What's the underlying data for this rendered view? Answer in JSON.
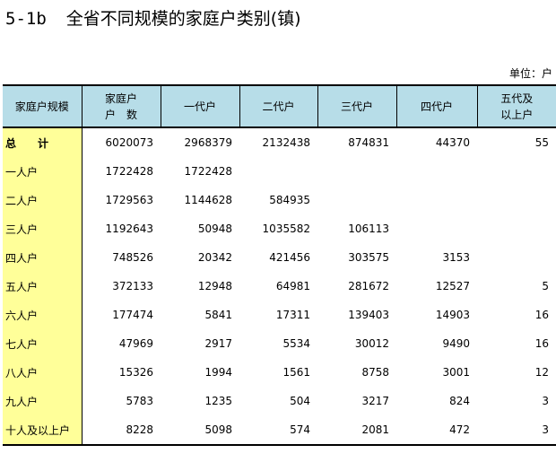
{
  "title": {
    "number": "5-1b",
    "text": "全省不同规模的家庭户类别(镇)"
  },
  "unit": "单位：户",
  "columns": [
    [
      "家庭户规模"
    ],
    [
      "家庭户",
      "户　数"
    ],
    [
      "一代户"
    ],
    [
      "二代户"
    ],
    [
      "三代户"
    ],
    [
      "四代户"
    ],
    [
      "五代及",
      "以上户"
    ]
  ],
  "rows": [
    {
      "label": "总　计",
      "values": [
        "6020073",
        "2968379",
        "2132438",
        "874831",
        "44370",
        "55"
      ]
    },
    {
      "label": "一人户",
      "values": [
        "1722428",
        "1722428",
        "",
        "",
        "",
        ""
      ]
    },
    {
      "label": "二人户",
      "values": [
        "1729563",
        "1144628",
        "584935",
        "",
        "",
        ""
      ]
    },
    {
      "label": "三人户",
      "values": [
        "1192643",
        "50948",
        "1035582",
        "106113",
        "",
        ""
      ]
    },
    {
      "label": "四人户",
      "values": [
        "748526",
        "20342",
        "421456",
        "303575",
        "3153",
        ""
      ]
    },
    {
      "label": "五人户",
      "values": [
        "372133",
        "12948",
        "64981",
        "281672",
        "12527",
        "5"
      ]
    },
    {
      "label": "六人户",
      "values": [
        "177474",
        "5841",
        "17311",
        "139403",
        "14903",
        "16"
      ]
    },
    {
      "label": "七人户",
      "values": [
        "47969",
        "2917",
        "5534",
        "30012",
        "9490",
        "16"
      ]
    },
    {
      "label": "八人户",
      "values": [
        "15326",
        "1994",
        "1561",
        "8758",
        "3001",
        "12"
      ]
    },
    {
      "label": "九人户",
      "values": [
        "5783",
        "1235",
        "504",
        "3217",
        "824",
        "3"
      ]
    },
    {
      "label": "十人及以上户",
      "values": [
        "8228",
        "5098",
        "574",
        "2081",
        "472",
        "3"
      ]
    }
  ]
}
